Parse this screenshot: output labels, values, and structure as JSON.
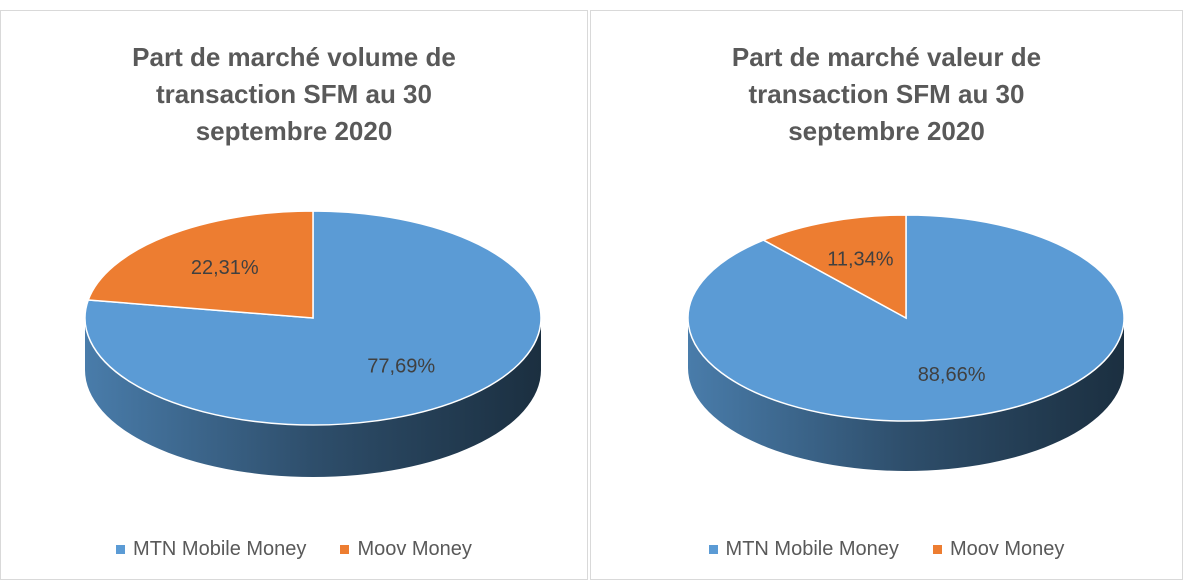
{
  "chart_data": [
    {
      "type": "pie",
      "title": "Part de marché volume de transaction SFM au 30 septembre 2020",
      "categories": [
        "MTN Mobile Money",
        "Moov Money"
      ],
      "values": [
        77.69,
        22.31
      ],
      "value_labels": [
        "77,69%",
        "22,31%"
      ],
      "colors": [
        "#5b9bd5",
        "#ed7d31"
      ],
      "legend": "bottom"
    },
    {
      "type": "pie",
      "title": "Part de marché valeur de transaction SFM au 30 septembre 2020",
      "categories": [
        "MTN Mobile Money",
        "Moov Money"
      ],
      "values": [
        88.66,
        11.34
      ],
      "value_labels": [
        "88,66%",
        "11,34%"
      ],
      "colors": [
        "#5b9bd5",
        "#ed7d31"
      ],
      "legend": "bottom"
    }
  ]
}
